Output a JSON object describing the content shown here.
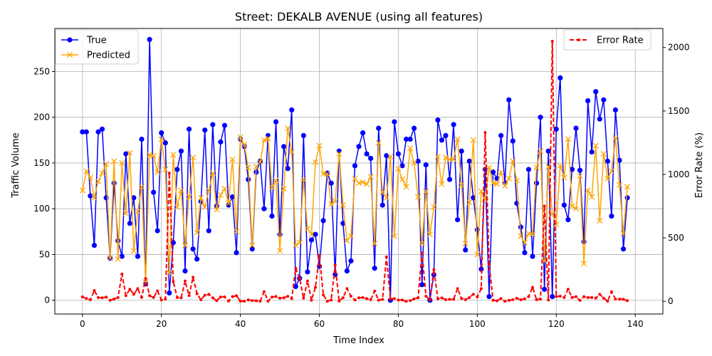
{
  "chart_data": {
    "type": "line",
    "title": "Street: DEKALB AVENUE (using all features)",
    "xlabel": "Time Index",
    "ylabel": "Traffic Volume",
    "y2label": "Error Rate (%)",
    "xlim": [
      -7,
      147
    ],
    "ylim": [
      -15,
      297
    ],
    "y2lim": [
      -100,
      2150
    ],
    "xticks": [
      0,
      20,
      40,
      60,
      80,
      100,
      120,
      140
    ],
    "yticks": [
      0,
      50,
      100,
      150,
      200,
      250
    ],
    "y2ticks": [
      0,
      500,
      1000,
      1500,
      2000
    ],
    "grid": true,
    "legend_left": "upper-left",
    "legend_right": "upper-right",
    "series": [
      {
        "name": "True",
        "axis": "left",
        "color": "#0000ff",
        "marker": "circle",
        "values": [
          184,
          184,
          114,
          60,
          184,
          187,
          112,
          46,
          128,
          65,
          48,
          160,
          84,
          112,
          48,
          176,
          18,
          285,
          118,
          76,
          183,
          172,
          8,
          63,
          143,
          163,
          32,
          187,
          56,
          45,
          108,
          186,
          76,
          192,
          103,
          173,
          191,
          104,
          113,
          52,
          176,
          168,
          132,
          56,
          140,
          152,
          100,
          180,
          92,
          195,
          72,
          168,
          144,
          208,
          15,
          24,
          180,
          31,
          66,
          72,
          37,
          87,
          139,
          128,
          28,
          163,
          84,
          32,
          43,
          147,
          168,
          183,
          160,
          155,
          35,
          188,
          104,
          158,
          0,
          195,
          160,
          147,
          176,
          176,
          188,
          152,
          17,
          148,
          0,
          28,
          197,
          175,
          180,
          132,
          192,
          88,
          163,
          55,
          152,
          112,
          77,
          34,
          143,
          4,
          140,
          133,
          180,
          128,
          219,
          174,
          106,
          80,
          52,
          143,
          48,
          128,
          200,
          12,
          163,
          4,
          187,
          243,
          104,
          88,
          143,
          188,
          142,
          64,
          218,
          162,
          228,
          198,
          219,
          152,
          92,
          208,
          153,
          56,
          112
        ]
      },
      {
        "name": "Predicted",
        "axis": "left",
        "color": "#ffa500",
        "marker": "x",
        "values": [
          120,
          141,
          134,
          112,
          130,
          139,
          149,
          46,
          152,
          45,
          150,
          95,
          161,
          54,
          97,
          124,
          20,
          159,
          158,
          140,
          176,
          143,
          30,
          159,
          102,
          120,
          60,
          113,
          156,
          74,
          112,
          102,
          120,
          139,
          99,
          115,
          122,
          106,
          154,
          75,
          178,
          170,
          145,
          60,
          146,
          151,
          175,
          177,
          123,
          131,
          54,
          122,
          188,
          162,
          60,
          63,
          132,
          78,
          72,
          151,
          169,
          138,
          138,
          105,
          108,
          160,
          104,
          65,
          70,
          133,
          128,
          129,
          127,
          135,
          62,
          172,
          118,
          112,
          157,
          70,
          144,
          132,
          124,
          166,
          150,
          113,
          62,
          119,
          72,
          102,
          157,
          127,
          156,
          154,
          154,
          176,
          126,
          62,
          107,
          175,
          50,
          119,
          110,
          145,
          128,
          127,
          140,
          125,
          133,
          152,
          131,
          70,
          63,
          73,
          72,
          145,
          163,
          43,
          146,
          94,
          83,
          147,
          134,
          176,
          103,
          100,
          136,
          40,
          120,
          113,
          169,
          87,
          160,
          133,
          141,
          177,
          126,
          73,
          124
        ]
      },
      {
        "name": "Error Rate",
        "axis": "right",
        "color": "#ff0000",
        "marker": "dot",
        "dashed": true,
        "values": [
          35,
          22,
          12,
          85,
          30,
          28,
          33,
          8,
          18,
          30,
          215,
          45,
          95,
          55,
          100,
          31,
          180,
          45,
          30,
          82,
          10,
          17,
          1010,
          155,
          30,
          28,
          160,
          45,
          190,
          60,
          12,
          48,
          55,
          28,
          5,
          34,
          35,
          2,
          37,
          44,
          1,
          1,
          11,
          6,
          4,
          1,
          75,
          2,
          33,
          38,
          25,
          28,
          39,
          22,
          260,
          180,
          25,
          160,
          9,
          110,
          360,
          50,
          0,
          10,
          285,
          2,
          28,
          100,
          40,
          10,
          28,
          30,
          21,
          13,
          80,
          9,
          15,
          350,
          18,
          21,
          10,
          10,
          0,
          5,
          20,
          28,
          380,
          40,
          10,
          250,
          20,
          27,
          13,
          16,
          16,
          100,
          22,
          13,
          30,
          56,
          35,
          100,
          1330,
          290,
          8,
          4,
          22,
          0,
          7,
          13,
          24,
          12,
          20,
          37,
          110,
          13,
          18,
          750,
          10,
          2050,
          37,
          40,
          30,
          95,
          30,
          36,
          7,
          37,
          30,
          30,
          25,
          56,
          25,
          1,
          75,
          18,
          17,
          16,
          5
        ]
      }
    ]
  }
}
